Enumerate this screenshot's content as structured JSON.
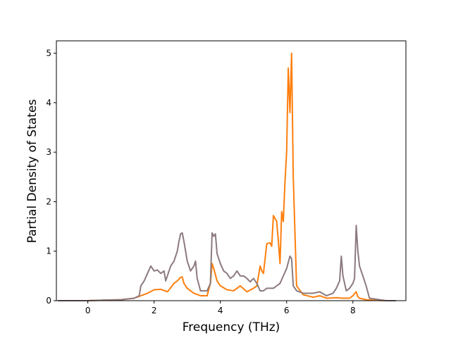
{
  "chart_data": {
    "type": "line",
    "title": "",
    "xlabel": "Frequency (THz)",
    "ylabel": "Partial Density of States",
    "xlim": [
      -0.95,
      9.6
    ],
    "ylim": [
      0,
      5.25
    ],
    "xticks": [
      0,
      2,
      4,
      6,
      8
    ],
    "yticks": [
      0,
      1,
      2,
      3,
      4,
      5
    ],
    "grid": false,
    "legend": "none",
    "series": [
      {
        "color": "#ff7f0e",
        "x": [
          -0.9,
          0.0,
          0.5,
          1.0,
          1.4,
          1.6,
          1.8,
          2.0,
          2.2,
          2.4,
          2.5,
          2.6,
          2.7,
          2.8,
          2.85,
          2.9,
          3.0,
          3.2,
          3.4,
          3.6,
          3.7,
          3.75,
          3.8,
          3.9,
          4.0,
          4.2,
          4.4,
          4.5,
          4.6,
          4.8,
          5.0,
          5.1,
          5.2,
          5.25,
          5.3,
          5.4,
          5.5,
          5.55,
          5.6,
          5.7,
          5.75,
          5.8,
          5.85,
          5.9,
          5.95,
          6.0,
          6.05,
          6.1,
          6.15,
          6.2,
          6.3,
          6.5,
          6.8,
          7.0,
          7.2,
          7.5,
          7.7,
          7.9,
          8.0,
          8.1,
          8.15,
          8.2,
          8.4,
          8.6,
          9.0,
          9.3
        ],
        "y": [
          0.0,
          0.0,
          0.01,
          0.02,
          0.05,
          0.1,
          0.15,
          0.22,
          0.23,
          0.18,
          0.26,
          0.35,
          0.4,
          0.47,
          0.48,
          0.35,
          0.25,
          0.15,
          0.1,
          0.1,
          0.35,
          0.75,
          0.65,
          0.4,
          0.3,
          0.22,
          0.2,
          0.25,
          0.3,
          0.18,
          0.25,
          0.3,
          0.7,
          0.6,
          0.55,
          1.15,
          1.17,
          1.1,
          1.72,
          1.6,
          1.2,
          0.75,
          1.8,
          1.6,
          2.4,
          3.0,
          4.7,
          3.8,
          5.0,
          2.5,
          0.3,
          0.12,
          0.07,
          0.1,
          0.05,
          0.06,
          0.05,
          0.05,
          0.1,
          0.18,
          0.08,
          0.05,
          0.02,
          0.01,
          0.0,
          0.0
        ]
      },
      {
        "color": "#8c7a7e",
        "x": [
          -0.9,
          0.0,
          0.5,
          1.0,
          1.4,
          1.55,
          1.6,
          1.7,
          1.8,
          1.9,
          1.95,
          2.0,
          2.1,
          2.2,
          2.3,
          2.35,
          2.4,
          2.5,
          2.6,
          2.7,
          2.75,
          2.8,
          2.85,
          2.9,
          3.0,
          3.1,
          3.2,
          3.25,
          3.3,
          3.4,
          3.6,
          3.7,
          3.75,
          3.8,
          3.85,
          3.9,
          4.0,
          4.1,
          4.2,
          4.3,
          4.4,
          4.5,
          4.6,
          4.7,
          4.8,
          4.9,
          5.0,
          5.1,
          5.2,
          5.3,
          5.4,
          5.5,
          5.6,
          5.7,
          5.8,
          5.9,
          6.0,
          6.1,
          6.15,
          6.2,
          6.3,
          6.5,
          6.8,
          7.0,
          7.2,
          7.4,
          7.5,
          7.6,
          7.65,
          7.7,
          7.8,
          7.9,
          8.0,
          8.05,
          8.1,
          8.15,
          8.2,
          8.3,
          8.4,
          8.5,
          9.0,
          9.3
        ],
        "y": [
          0.0,
          0.0,
          0.01,
          0.02,
          0.05,
          0.1,
          0.3,
          0.4,
          0.55,
          0.7,
          0.65,
          0.6,
          0.62,
          0.55,
          0.6,
          0.4,
          0.5,
          0.7,
          0.8,
          1.0,
          1.2,
          1.35,
          1.37,
          1.2,
          0.8,
          0.6,
          0.7,
          0.8,
          0.45,
          0.2,
          0.2,
          0.35,
          1.37,
          1.3,
          1.35,
          0.95,
          0.75,
          0.6,
          0.55,
          0.45,
          0.5,
          0.6,
          0.5,
          0.5,
          0.45,
          0.38,
          0.45,
          0.35,
          0.2,
          0.2,
          0.25,
          0.25,
          0.25,
          0.3,
          0.35,
          0.5,
          0.65,
          0.9,
          0.85,
          0.3,
          0.2,
          0.15,
          0.15,
          0.18,
          0.1,
          0.15,
          0.25,
          0.4,
          0.9,
          0.5,
          0.2,
          0.25,
          0.35,
          0.45,
          1.52,
          1.0,
          0.7,
          0.5,
          0.3,
          0.05,
          0.0,
          0.0
        ]
      }
    ]
  }
}
